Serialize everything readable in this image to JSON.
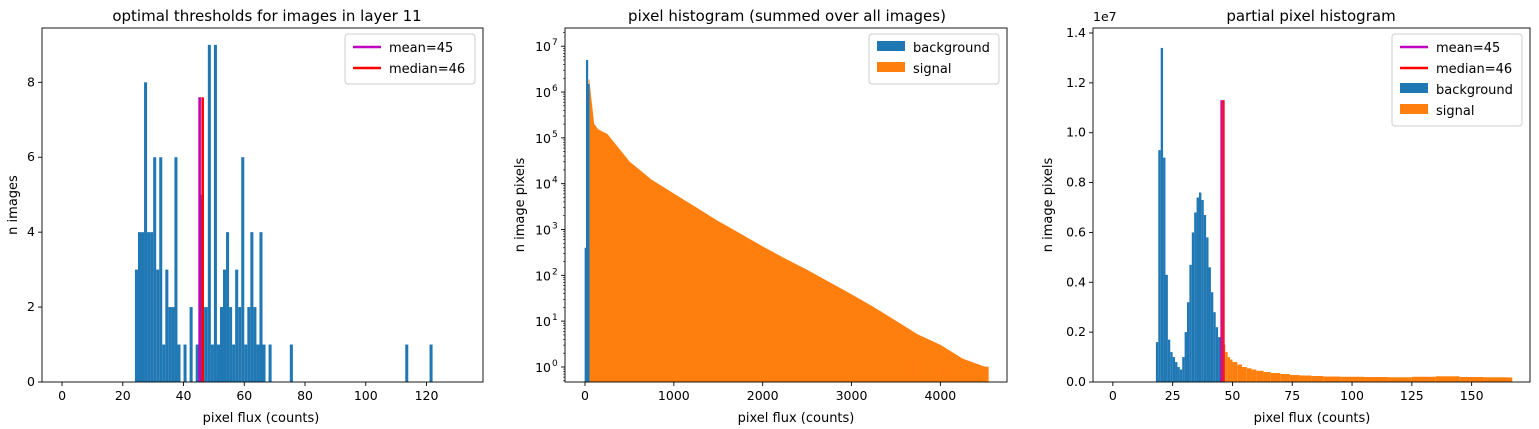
{
  "colors": {
    "background": "#1f77b4",
    "signal": "#ff7f0e",
    "mean": "#bf00bf",
    "median": "#ff0000",
    "overlap": "#e8124f"
  },
  "chart_data": [
    {
      "type": "bar",
      "title": "optimal thresholds for images in layer 11",
      "xlabel": "pixel flux (counts)",
      "ylabel": "n images",
      "xlim": [
        -6.6,
        138.6
      ],
      "ylim": [
        0,
        9.45
      ],
      "xticks": [
        0,
        20,
        40,
        60,
        80,
        100,
        120
      ],
      "yticks": [
        0,
        2,
        4,
        6,
        8
      ],
      "bin_width": 1,
      "bars": [
        [
          24,
          3
        ],
        [
          25,
          4
        ],
        [
          26,
          4
        ],
        [
          27,
          8
        ],
        [
          28,
          4
        ],
        [
          29,
          4
        ],
        [
          30,
          6
        ],
        [
          31,
          3
        ],
        [
          32,
          6
        ],
        [
          33,
          1
        ],
        [
          34,
          3
        ],
        [
          35,
          2
        ],
        [
          36,
          2
        ],
        [
          37,
          6
        ],
        [
          38,
          1
        ],
        [
          40,
          1
        ],
        [
          42,
          2
        ],
        [
          44,
          1
        ],
        [
          45,
          5
        ],
        [
          46,
          2
        ],
        [
          47,
          2
        ],
        [
          48,
          9
        ],
        [
          49,
          1
        ],
        [
          50,
          9
        ],
        [
          51,
          1
        ],
        [
          52,
          2
        ],
        [
          53,
          3
        ],
        [
          54,
          4
        ],
        [
          55,
          2
        ],
        [
          56,
          1
        ],
        [
          57,
          3
        ],
        [
          58,
          2
        ],
        [
          59,
          6
        ],
        [
          60,
          1
        ],
        [
          61,
          2
        ],
        [
          62,
          4
        ],
        [
          63,
          2
        ],
        [
          64,
          1
        ],
        [
          65,
          4
        ],
        [
          66,
          1
        ],
        [
          68,
          1
        ],
        [
          75,
          1
        ],
        [
          113,
          1
        ],
        [
          121,
          1
        ]
      ],
      "vlines": [
        {
          "label": "mean=45",
          "x": 45.3,
          "ymax": 7.6,
          "color": "#bf00bf"
        },
        {
          "label": "median=46",
          "x": 46.3,
          "ymax": 7.6,
          "color": "#ff0000"
        }
      ],
      "legend": {
        "position": "top-right",
        "entries": [
          {
            "label": "mean=45",
            "kind": "line",
            "color": "#bf00bf"
          },
          {
            "label": "median=46",
            "kind": "line",
            "color": "#ff0000"
          }
        ]
      }
    },
    {
      "type": "bar",
      "title": "pixel histogram (summed over all images)",
      "xlabel": "pixel flux (counts)",
      "ylabel": "n image pixels",
      "yscale": "log",
      "xlim": [
        -225,
        4750
      ],
      "ylim": [
        0.47,
        25000000
      ],
      "xticks": [
        0,
        1000,
        2000,
        3000,
        4000
      ],
      "yticks": [
        {
          "value": 1,
          "label": "10",
          "exp": "0"
        },
        {
          "value": 10,
          "label": "10",
          "exp": "1"
        },
        {
          "value": 100,
          "label": "10",
          "exp": "2"
        },
        {
          "value": 1000,
          "label": "10",
          "exp": "3"
        },
        {
          "value": 10000,
          "label": "10",
          "exp": "4"
        },
        {
          "value": 100000,
          "label": "10",
          "exp": "5"
        },
        {
          "value": 1000000,
          "label": "10",
          "exp": "6"
        },
        {
          "value": 10000000,
          "label": "10",
          "exp": "7"
        }
      ],
      "series": [
        {
          "name": "background",
          "color": "#1f77b4",
          "bars": [
            [
              5,
              400
            ],
            [
              20,
              5000000
            ],
            [
              35,
              1500000
            ]
          ]
        },
        {
          "name": "signal",
          "color": "#ff7f0e",
          "bins": [
            [
              45,
              1900000
            ],
            [
              60,
              1000000
            ],
            [
              80,
              450000
            ],
            [
              100,
              200000
            ],
            [
              150,
              150000
            ],
            [
              250,
              120000
            ],
            [
              500,
              30000
            ],
            [
              750,
              12000
            ],
            [
              1000,
              6000
            ],
            [
              1250,
              3000
            ],
            [
              1500,
              1500
            ],
            [
              1750,
              800
            ],
            [
              2000,
              420
            ],
            [
              2250,
              230
            ],
            [
              2500,
              130
            ],
            [
              2750,
              70
            ],
            [
              3000,
              38
            ],
            [
              3250,
              20
            ],
            [
              3500,
              10
            ],
            [
              3750,
              5
            ],
            [
              4000,
              3
            ],
            [
              4250,
              1.5
            ],
            [
              4500,
              1
            ]
          ]
        }
      ],
      "legend": {
        "position": "top-right",
        "entries": [
          {
            "label": "background",
            "kind": "patch",
            "color": "#1f77b4"
          },
          {
            "label": "signal",
            "kind": "patch",
            "color": "#ff7f0e"
          }
        ]
      }
    },
    {
      "type": "bar",
      "title": "partial pixel histogram",
      "xlabel": "pixel flux (counts)",
      "ylabel": "n image pixels",
      "y_offset_label": "1e7",
      "xlim": [
        -8.3,
        174.4
      ],
      "ylim": [
        0,
        1.42
      ],
      "xticks": [
        0,
        25,
        50,
        75,
        100,
        125,
        150
      ],
      "yticks": [
        0.0,
        0.2,
        0.4,
        0.6,
        0.8,
        1.0,
        1.2,
        1.4
      ],
      "bin_width": 1,
      "series": [
        {
          "name": "background",
          "color": "#1f77b4",
          "bars": [
            [
              18,
              0.16
            ],
            [
              19,
              0.93
            ],
            [
              20,
              1.34
            ],
            [
              21,
              0.9
            ],
            [
              22,
              0.43
            ],
            [
              23,
              0.17
            ],
            [
              24,
              0.12
            ],
            [
              25,
              0.1
            ],
            [
              26,
              0.08
            ],
            [
              27,
              0.06
            ],
            [
              28,
              0.05
            ],
            [
              29,
              0.1
            ],
            [
              30,
              0.2
            ],
            [
              31,
              0.32
            ],
            [
              32,
              0.47
            ],
            [
              33,
              0.6
            ],
            [
              34,
              0.68
            ],
            [
              35,
              0.74
            ],
            [
              36,
              0.76
            ],
            [
              37,
              0.73
            ],
            [
              38,
              0.67
            ],
            [
              39,
              0.58
            ],
            [
              40,
              0.46
            ],
            [
              41,
              0.36
            ],
            [
              42,
              0.28
            ],
            [
              43,
              0.22
            ],
            [
              44,
              0.18
            ],
            [
              45,
              0.14
            ]
          ]
        },
        {
          "name": "signal",
          "color": "#ff7f0e",
          "bars": [
            [
              46,
              0.15
            ],
            [
              47,
              0.12
            ],
            [
              48,
              0.1
            ],
            [
              49,
              0.09
            ],
            [
              50,
              0.08
            ],
            [
              52,
              0.07
            ],
            [
              54,
              0.06
            ],
            [
              56,
              0.055
            ],
            [
              58,
              0.05
            ],
            [
              60,
              0.045
            ],
            [
              63,
              0.04
            ],
            [
              66,
              0.036
            ],
            [
              70,
              0.032
            ],
            [
              74,
              0.028
            ],
            [
              78,
              0.026
            ],
            [
              83,
              0.024
            ],
            [
              88,
              0.022
            ],
            [
              95,
              0.021
            ],
            [
              105,
              0.02
            ],
            [
              115,
              0.019
            ],
            [
              125,
              0.021
            ],
            [
              135,
              0.023
            ],
            [
              145,
              0.02
            ],
            [
              155,
              0.019
            ],
            [
              165,
              0.018
            ]
          ],
          "bin_widths": [
            1,
            1,
            1,
            1,
            2,
            2,
            2,
            2,
            2,
            3,
            3,
            4,
            4,
            4,
            5,
            5,
            7,
            10,
            10,
            10,
            10,
            10,
            10,
            10,
            2
          ]
        },
        {
          "name": "threshold-line",
          "color": "#e8124f",
          "bars": [
            [
              45,
              1.13
            ]
          ]
        }
      ],
      "vlines": [
        {
          "label": "mean=45",
          "x": 45.5,
          "ymax": 1.13,
          "color": "#bf00bf"
        },
        {
          "label": "median=46",
          "x": 46.2,
          "ymax": 1.13,
          "color": "#ff0000"
        }
      ],
      "legend": {
        "position": "top-right",
        "entries": [
          {
            "label": "mean=45",
            "kind": "line",
            "color": "#bf00bf"
          },
          {
            "label": "median=46",
            "kind": "line",
            "color": "#ff0000"
          },
          {
            "label": "background",
            "kind": "patch",
            "color": "#1f77b4"
          },
          {
            "label": "signal",
            "kind": "patch",
            "color": "#ff7f0e"
          }
        ]
      }
    }
  ]
}
